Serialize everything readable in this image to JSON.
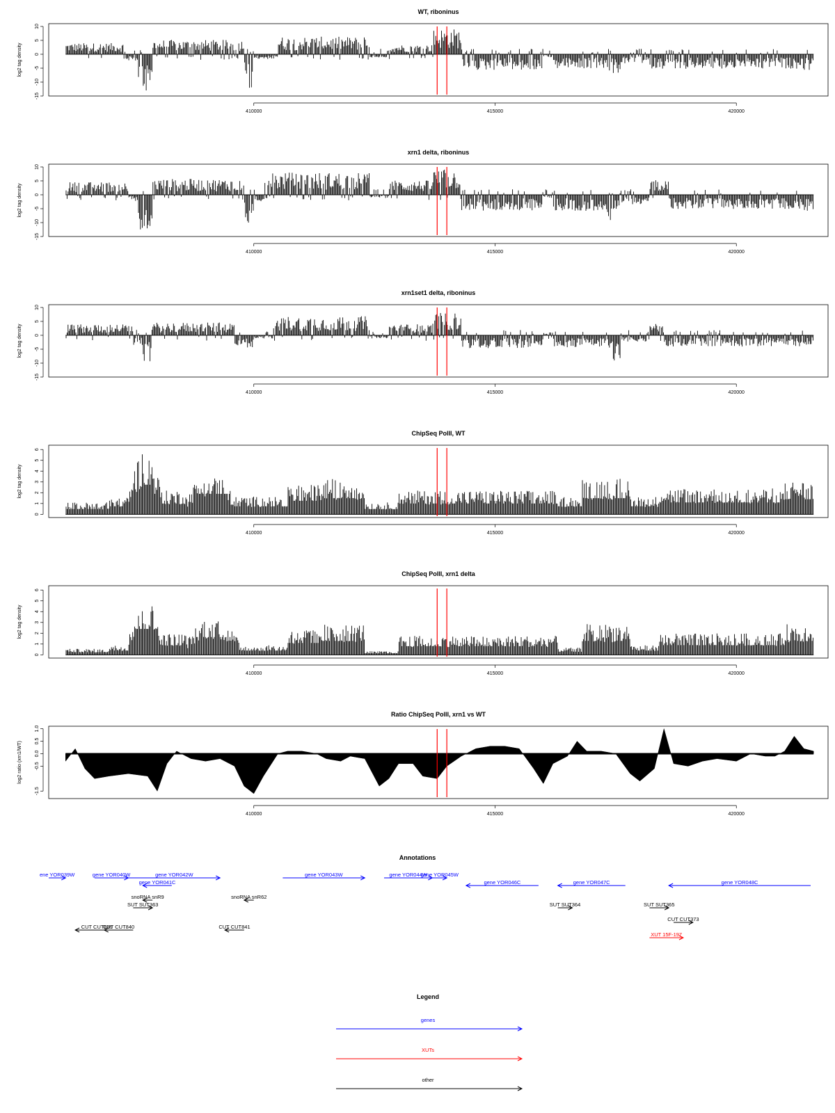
{
  "palette": {
    "genes": "#0000ff",
    "xuts": "#ff0000",
    "other": "#000000",
    "marker": "#ff0000"
  },
  "chart_data": [
    {
      "type": "bar",
      "title": "WT, riboninus",
      "ylabel": "log2 tag density",
      "ylim": [
        -15,
        11
      ],
      "yticks": [
        10,
        5,
        0,
        -5,
        -10,
        -15
      ],
      "xlim": [
        405750,
        421900
      ],
      "xticks": [
        410000,
        415000,
        420000
      ],
      "markers": [
        413800,
        414000
      ],
      "profile": [
        {
          "x": [
            406100,
            407300
          ],
          "y": 3.5
        },
        {
          "x": [
            407300,
            407600
          ],
          "y": -2
        },
        {
          "x": [
            407600,
            407900
          ],
          "y": -12
        },
        {
          "x": [
            407900,
            409800
          ],
          "y": 4.5
        },
        {
          "x": [
            409800,
            410000
          ],
          "y": -11
        },
        {
          "x": [
            410000,
            410500
          ],
          "y": -1.5
        },
        {
          "x": [
            410500,
            412400
          ],
          "y": 5.5
        },
        {
          "x": [
            412400,
            412800
          ],
          "y": -1
        },
        {
          "x": [
            412800,
            413700
          ],
          "y": 3
        },
        {
          "x": [
            413700,
            414300
          ],
          "y": 8
        },
        {
          "x": [
            414300,
            416000
          ],
          "y": -5
        },
        {
          "x": [
            416000,
            416200
          ],
          "y": -1
        },
        {
          "x": [
            416200,
            417300
          ],
          "y": -4.5
        },
        {
          "x": [
            417300,
            417600
          ],
          "y": -6
        },
        {
          "x": [
            417600,
            418200
          ],
          "y": -3
        },
        {
          "x": [
            418200,
            421400
          ],
          "y": -4.5
        },
        {
          "x": [
            421400,
            421600
          ],
          "y": -5
        }
      ]
    },
    {
      "type": "bar",
      "title": "xrn1 delta, riboninus",
      "ylabel": "log2 tag density",
      "ylim": [
        -15,
        11
      ],
      "yticks": [
        10,
        5,
        0,
        -5,
        -10,
        -15
      ],
      "xlim": [
        405750,
        421900
      ],
      "xticks": [
        410000,
        415000,
        420000
      ],
      "markers": [
        413800,
        414000
      ],
      "profile": [
        {
          "x": [
            406100,
            407400
          ],
          "y": 4
        },
        {
          "x": [
            407400,
            407600
          ],
          "y": -2
        },
        {
          "x": [
            407600,
            407900
          ],
          "y": -11
        },
        {
          "x": [
            407900,
            409800
          ],
          "y": 5
        },
        {
          "x": [
            409800,
            410000
          ],
          "y": -10
        },
        {
          "x": [
            410000,
            410200
          ],
          "y": -2
        },
        {
          "x": [
            410200,
            412400
          ],
          "y": 7
        },
        {
          "x": [
            412400,
            412800
          ],
          "y": -1
        },
        {
          "x": [
            412800,
            413700
          ],
          "y": 4.5
        },
        {
          "x": [
            413700,
            414300
          ],
          "y": 8
        },
        {
          "x": [
            414300,
            416000
          ],
          "y": -5
        },
        {
          "x": [
            416000,
            416200
          ],
          "y": -1
        },
        {
          "x": [
            416200,
            417300
          ],
          "y": -5
        },
        {
          "x": [
            417300,
            417600
          ],
          "y": -8
        },
        {
          "x": [
            417600,
            418200
          ],
          "y": -3
        },
        {
          "x": [
            418200,
            418600
          ],
          "y": 5
        },
        {
          "x": [
            418600,
            421400
          ],
          "y": -4.5
        },
        {
          "x": [
            421400,
            421600
          ],
          "y": -5
        }
      ]
    },
    {
      "type": "bar",
      "title": "xrn1set1 delta, riboninus",
      "ylabel": "log2 tag density",
      "ylim": [
        -15,
        11
      ],
      "yticks": [
        10,
        5,
        0,
        -5,
        -10,
        -15
      ],
      "xlim": [
        405750,
        421900
      ],
      "xticks": [
        410000,
        415000,
        420000
      ],
      "markers": [
        413800,
        414000
      ],
      "profile": [
        {
          "x": [
            406100,
            407500
          ],
          "y": 3.5
        },
        {
          "x": [
            407500,
            407700
          ],
          "y": -3
        },
        {
          "x": [
            407700,
            407900
          ],
          "y": -9
        },
        {
          "x": [
            407900,
            409600
          ],
          "y": 4
        },
        {
          "x": [
            409600,
            410000
          ],
          "y": -4
        },
        {
          "x": [
            410000,
            410400
          ],
          "y": -1
        },
        {
          "x": [
            410400,
            412400
          ],
          "y": 6
        },
        {
          "x": [
            412400,
            412800
          ],
          "y": -1
        },
        {
          "x": [
            412800,
            413700
          ],
          "y": 3.5
        },
        {
          "x": [
            413700,
            414300
          ],
          "y": 7
        },
        {
          "x": [
            414300,
            416000
          ],
          "y": -4
        },
        {
          "x": [
            416000,
            416200
          ],
          "y": 1
        },
        {
          "x": [
            416200,
            417400
          ],
          "y": -4
        },
        {
          "x": [
            417400,
            417600
          ],
          "y": -8
        },
        {
          "x": [
            417600,
            418200
          ],
          "y": -2
        },
        {
          "x": [
            418200,
            418500
          ],
          "y": 4
        },
        {
          "x": [
            418500,
            421400
          ],
          "y": -3.5
        },
        {
          "x": [
            421400,
            421600
          ],
          "y": -3
        }
      ]
    },
    {
      "type": "bar",
      "title": "ChipSeq PolII, WT",
      "ylabel": "log2 tag density",
      "ylim": [
        -0.3,
        6.4
      ],
      "yticks": [
        0,
        1,
        2,
        3,
        4,
        5,
        6
      ],
      "xlim": [
        405750,
        421900
      ],
      "xticks": [
        410000,
        415000,
        420000
      ],
      "markers": [
        413800,
        414000
      ],
      "profile": [
        {
          "x": [
            406100,
            407000
          ],
          "y": 1
        },
        {
          "x": [
            407000,
            407400
          ],
          "y": 1.5
        },
        {
          "x": [
            407400,
            408100
          ],
          "y": 5.5
        },
        {
          "x": [
            408100,
            408600
          ],
          "y": 2
        },
        {
          "x": [
            408600,
            409600
          ],
          "y": 3.8
        },
        {
          "x": [
            409600,
            410700
          ],
          "y": 1.5
        },
        {
          "x": [
            410700,
            411400
          ],
          "y": 2.5
        },
        {
          "x": [
            411400,
            412300
          ],
          "y": 3
        },
        {
          "x": [
            412300,
            413000
          ],
          "y": 1
        },
        {
          "x": [
            413000,
            416300
          ],
          "y": 2
        },
        {
          "x": [
            416300,
            416800
          ],
          "y": 1.5
        },
        {
          "x": [
            416800,
            417800
          ],
          "y": 3
        },
        {
          "x": [
            417800,
            418400
          ],
          "y": 1.5
        },
        {
          "x": [
            418400,
            421000
          ],
          "y": 2.2
        },
        {
          "x": [
            421000,
            421600
          ],
          "y": 2.8
        }
      ]
    },
    {
      "type": "bar",
      "title": "ChipSeq PolII, xrn1 delta",
      "ylabel": "log2 tag density",
      "ylim": [
        -0.3,
        6.4
      ],
      "yticks": [
        0,
        1,
        2,
        3,
        4,
        5,
        6
      ],
      "xlim": [
        405750,
        421900
      ],
      "xticks": [
        410000,
        415000,
        420000
      ],
      "markers": [
        413800,
        414000
      ],
      "profile": [
        {
          "x": [
            406100,
            407000
          ],
          "y": 0.5
        },
        {
          "x": [
            407000,
            407400
          ],
          "y": 0.8
        },
        {
          "x": [
            407400,
            408100
          ],
          "y": 4.8
        },
        {
          "x": [
            408100,
            408600
          ],
          "y": 1.8
        },
        {
          "x": [
            408600,
            409700
          ],
          "y": 3.3
        },
        {
          "x": [
            409700,
            410700
          ],
          "y": 0.8
        },
        {
          "x": [
            410700,
            411400
          ],
          "y": 2.2
        },
        {
          "x": [
            411400,
            412300
          ],
          "y": 2.6
        },
        {
          "x": [
            412300,
            413000
          ],
          "y": 0.3
        },
        {
          "x": [
            413000,
            416300
          ],
          "y": 1.6
        },
        {
          "x": [
            416300,
            416800
          ],
          "y": 0.6
        },
        {
          "x": [
            416800,
            417800
          ],
          "y": 2.6
        },
        {
          "x": [
            417800,
            418400
          ],
          "y": 0.8
        },
        {
          "x": [
            418400,
            421000
          ],
          "y": 1.8
        },
        {
          "x": [
            421000,
            421600
          ],
          "y": 2.6
        }
      ]
    },
    {
      "type": "area",
      "title": "Ratio ChipSeq PolII, xrn1 vs WT",
      "ylabel": "log2 ratio (xrn1/WT)",
      "ylim": [
        -1.8,
        1.1
      ],
      "yticks": [
        1.0,
        0.5,
        0.0,
        -0.5,
        -1.5
      ],
      "ytick_labels": [
        "1.0",
        "0.5",
        "0.0",
        "-0.5",
        "-1.5"
      ],
      "xlim": [
        405750,
        421900
      ],
      "xticks": [
        410000,
        415000,
        420000
      ],
      "markers": [
        413800,
        414000
      ],
      "x": [
        406100,
        406300,
        406500,
        406700,
        407000,
        407400,
        407800,
        408000,
        408200,
        408400,
        408700,
        409000,
        409300,
        409600,
        409800,
        410000,
        410200,
        410500,
        410700,
        411000,
        411300,
        411500,
        411800,
        412000,
        412300,
        412600,
        412800,
        413000,
        413300,
        413500,
        413800,
        414000,
        414300,
        414600,
        414900,
        415200,
        415500,
        415800,
        416000,
        416200,
        416500,
        416700,
        416900,
        417200,
        417500,
        417800,
        418000,
        418300,
        418500,
        418700,
        419000,
        419300,
        419600,
        420000,
        420300,
        420600,
        420800,
        421000,
        421200,
        421400,
        421600
      ],
      "values": [
        -0.3,
        0.2,
        -0.6,
        -1.0,
        -0.9,
        -0.8,
        -0.9,
        -1.5,
        -0.4,
        0.1,
        -0.2,
        -0.3,
        -0.2,
        -0.5,
        -1.3,
        -1.6,
        -0.9,
        0.0,
        0.1,
        0.1,
        0.0,
        -0.2,
        -0.3,
        -0.1,
        -0.2,
        -1.3,
        -1.0,
        -0.4,
        -0.4,
        -0.9,
        -1.0,
        -0.5,
        -0.1,
        0.2,
        0.3,
        0.3,
        0.2,
        -0.6,
        -1.2,
        -0.4,
        -0.1,
        0.5,
        0.1,
        0.1,
        0.0,
        -0.8,
        -1.1,
        -0.6,
        1.0,
        -0.4,
        -0.5,
        -0.3,
        -0.2,
        -0.3,
        0.0,
        -0.1,
        -0.1,
        0.1,
        0.7,
        0.2,
        0.1
      ]
    }
  ],
  "annotations": {
    "title": "Annotations",
    "items": [
      {
        "label": "ene YOR039W",
        "type": "gene",
        "x1": 405750,
        "x2": 406100,
        "dir": "right",
        "row": 0
      },
      {
        "label": "gene YOR040W",
        "type": "gene",
        "x1": 406700,
        "x2": 407400,
        "dir": "right",
        "row": 0
      },
      {
        "label": "gene YOR042W",
        "type": "gene",
        "x1": 407400,
        "x2": 409300,
        "dir": "right",
        "row": 0
      },
      {
        "label": "gene YOR041C",
        "type": "gene",
        "x1": 407700,
        "x2": 408300,
        "dir": "left",
        "row": 1
      },
      {
        "label": "gene YOR043W",
        "type": "gene",
        "x1": 410600,
        "x2": 412300,
        "dir": "right",
        "row": 0
      },
      {
        "label": "gene YOR044W",
        "type": "gene",
        "x1": 412700,
        "x2": 413700,
        "dir": "right",
        "row": 0
      },
      {
        "label": "gene YOR045W",
        "type": "gene",
        "x1": 413700,
        "x2": 414000,
        "dir": "right",
        "row": 0
      },
      {
        "label": "gene YOR046C",
        "type": "gene",
        "x1": 414400,
        "x2": 415900,
        "dir": "left",
        "row": 1
      },
      {
        "label": "gene YOR047C",
        "type": "gene",
        "x1": 416300,
        "x2": 417700,
        "dir": "left",
        "row": 1
      },
      {
        "label": "gene YOR048C",
        "type": "gene",
        "x1": 418600,
        "x2": 421800,
        "dir": "left",
        "row": 1
      },
      {
        "label": "snoRNA snR9",
        "type": "other",
        "x1": 407700,
        "x2": 407900,
        "dir": "left",
        "row": 2
      },
      {
        "label": "snoRNA snR62",
        "type": "other",
        "x1": 409800,
        "x2": 410000,
        "dir": "left",
        "row": 2
      },
      {
        "label": "SUT SUT363",
        "type": "other",
        "x1": 407500,
        "x2": 407900,
        "dir": "right",
        "row": 3
      },
      {
        "label": "SUT SUT364",
        "type": "other",
        "x1": 416300,
        "x2": 416600,
        "dir": "right",
        "row": 3
      },
      {
        "label": "SUT SUT365",
        "type": "other",
        "x1": 418200,
        "x2": 418600,
        "dir": "right",
        "row": 3
      },
      {
        "label": "CUT CUT373",
        "type": "other",
        "x1": 418700,
        "x2": 419100,
        "dir": "right",
        "row": 4
      },
      {
        "label": "CUT CUT839",
        "type": "other",
        "x1": 406300,
        "x2": 407200,
        "dir": "left",
        "row": 5
      },
      {
        "label": "CUT CUT840",
        "type": "other",
        "x1": 406900,
        "x2": 407500,
        "dir": "left",
        "row": 5
      },
      {
        "label": "CUT CUT841",
        "type": "other",
        "x1": 409400,
        "x2": 409800,
        "dir": "left",
        "row": 5
      },
      {
        "label": "XUT 15F-197",
        "type": "xut",
        "x1": 418200,
        "x2": 418900,
        "dir": "right",
        "row": 6
      }
    ]
  },
  "legend": {
    "title": "Legend",
    "items": [
      {
        "label": "genes",
        "type": "gene"
      },
      {
        "label": "XUTs",
        "type": "xut"
      },
      {
        "label": "other",
        "type": "other"
      }
    ]
  }
}
